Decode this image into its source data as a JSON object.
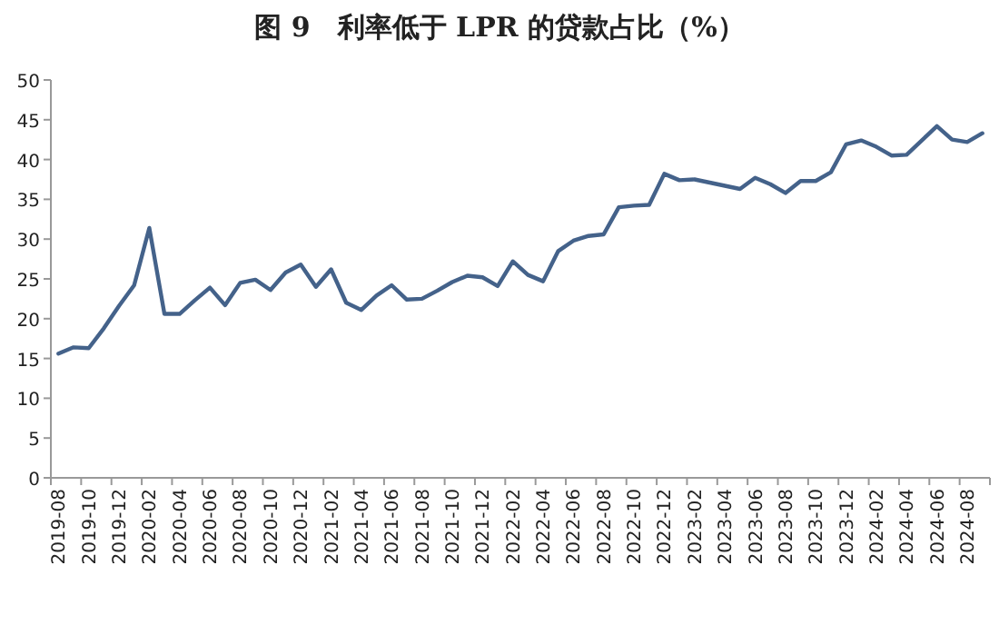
{
  "chart_data": {
    "type": "line",
    "title": "图 9　利率低于 LPR 的贷款占比（%）",
    "categories": [
      "2019-08",
      null,
      "2019-10",
      null,
      "2019-12",
      null,
      "2020-02",
      null,
      "2020-04",
      null,
      "2020-06",
      null,
      "2020-08",
      null,
      "2020-10",
      null,
      "2020-12",
      null,
      "2021-02",
      null,
      "2021-04",
      null,
      "2021-06",
      null,
      "2021-08",
      null,
      "2021-10",
      null,
      "2021-12",
      null,
      "2022-02",
      null,
      "2022-04",
      null,
      "2022-06",
      null,
      "2022-08",
      null,
      "2022-10",
      null,
      "2022-12",
      null,
      "2023-02",
      null,
      "2023-04",
      null,
      "2023-06",
      null,
      "2023-08",
      null,
      "2023-10",
      null,
      "2023-12",
      null,
      "2024-02",
      null,
      "2024-04",
      null,
      "2024-06",
      null,
      "2024-08",
      null
    ],
    "series": [
      {
        "color": "#44628a",
        "values": [
          15.6,
          16.4,
          16.3,
          18.8,
          21.6,
          24.2,
          31.4,
          20.6,
          20.6,
          22.3,
          23.9,
          21.7,
          24.5,
          24.9,
          23.6,
          25.8,
          26.8,
          24.0,
          26.2,
          22.0,
          21.1,
          22.9,
          24.2,
          22.4,
          22.5,
          23.5,
          24.6,
          25.4,
          25.2,
          24.1,
          27.2,
          25.5,
          24.7,
          28.5,
          29.8,
          30.4,
          30.6,
          34.0,
          34.2,
          34.3,
          38.2,
          37.4,
          37.5,
          37.1,
          36.7,
          36.3,
          37.7,
          36.9,
          35.8,
          37.3,
          37.3,
          38.4,
          41.9,
          42.4,
          41.6,
          40.5,
          40.6,
          42.4,
          44.2,
          42.5,
          42.2,
          43.3
        ]
      }
    ],
    "ylim": [
      0,
      50
    ],
    "yticks": [
      0,
      5,
      10,
      15,
      20,
      25,
      30,
      35,
      40,
      45,
      50
    ],
    "grid": false,
    "marker": "none",
    "line_style": "solid"
  }
}
